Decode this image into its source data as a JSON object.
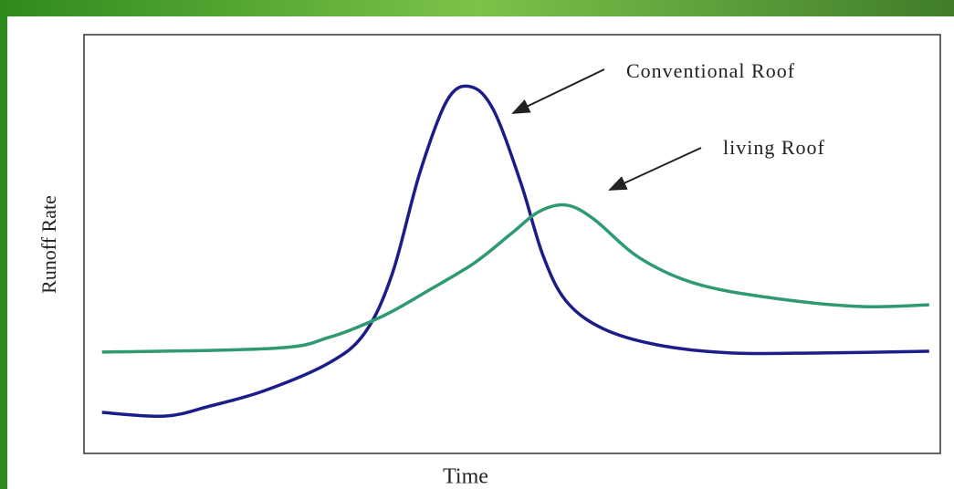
{
  "chart_data": {
    "type": "line",
    "x_label": "Time",
    "y_label": "Runoff Rate",
    "xlim": [
      0,
      100
    ],
    "ylim": [
      0,
      100
    ],
    "annotations": [
      "Conventional Roof",
      "living Roof"
    ],
    "series": [
      {
        "name": "Conventional Roof",
        "color": "#1c1c8a",
        "x": [
          2.1,
          9.4,
          14.7,
          21.1,
          28.6,
          32.8,
          36.0,
          39.2,
          42.4,
          45.1,
          47.8,
          51.0,
          53.6,
          56.3,
          60.6,
          67.0,
          75.5,
          86.1,
          98.7
        ],
        "values": [
          9.8,
          8.9,
          11.3,
          15.0,
          21.6,
          28.8,
          42.9,
          66.9,
          84.3,
          87.6,
          82.1,
          64.7,
          47.3,
          36.4,
          29.8,
          25.9,
          24.0,
          24.0,
          24.4
        ]
      },
      {
        "name": "living Roof",
        "color": "#2f9a70",
        "x": [
          2.1,
          22.2,
          28.6,
          35.0,
          40.3,
          45.6,
          49.9,
          53.1,
          56.3,
          59.5,
          64.8,
          71.2,
          79.7,
          90.4,
          98.7
        ],
        "values": [
          24.2,
          25.1,
          27.7,
          32.9,
          39.0,
          45.5,
          52.5,
          57.7,
          59.3,
          56.0,
          46.8,
          40.7,
          37.3,
          35.1,
          35.5
        ]
      }
    ]
  }
}
